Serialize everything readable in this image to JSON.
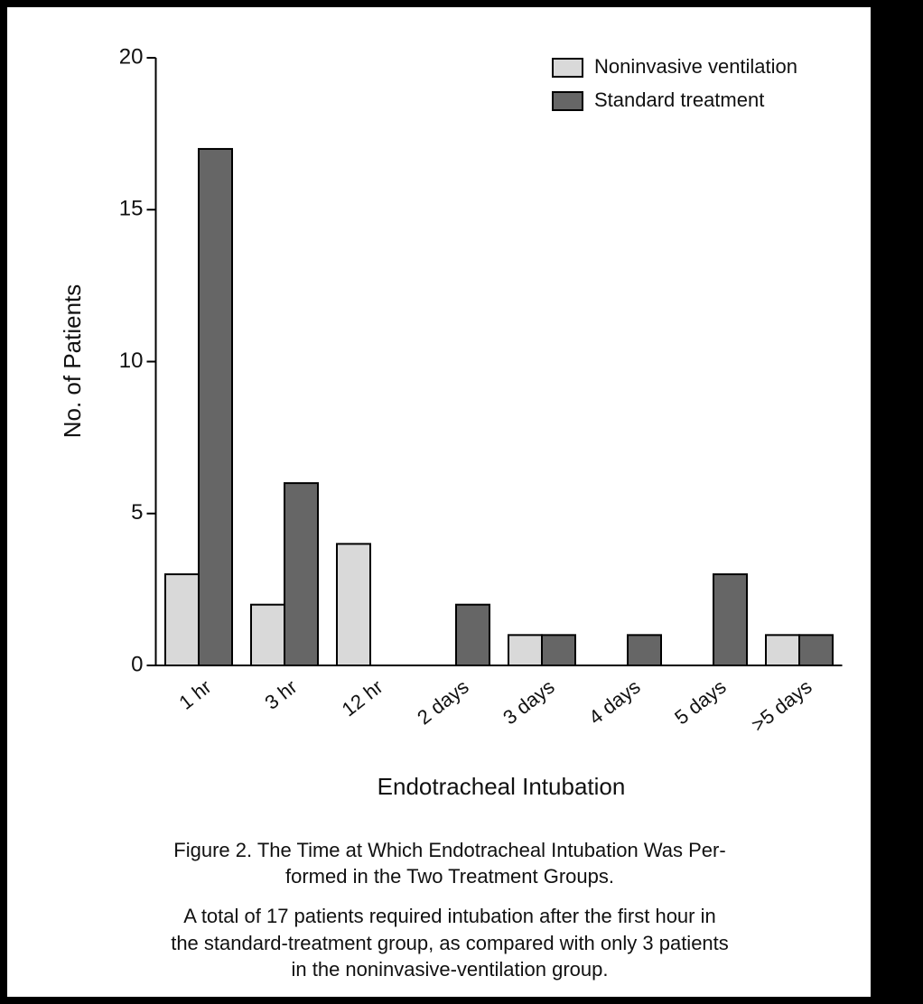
{
  "chart_data": {
    "type": "bar",
    "x_label": "Endotracheal Intubation",
    "y_label": "No. of Patients",
    "categories": [
      "1 hr",
      "3 hr",
      "12 hr",
      "2 days",
      "3 days",
      "4 days",
      "5 days",
      ">5 days"
    ],
    "series": [
      {
        "name": "Noninvasive ventilation",
        "color": "#d9d9d9",
        "values": [
          3,
          2,
          4,
          0,
          1,
          0,
          0,
          1
        ]
      },
      {
        "name": "Standard treatment",
        "color": "#666666",
        "values": [
          17,
          6,
          0,
          2,
          1,
          1,
          3,
          1
        ]
      }
    ],
    "ylim": [
      0,
      20
    ],
    "yticks": [
      0,
      5,
      10,
      15,
      20
    ],
    "legend": "upper right",
    "caption_title": [
      "Figure 2. The Time at Which Endotracheal Intubation Was Per-",
      "formed in the Two Treatment Groups."
    ],
    "caption_text": [
      "A total of 17 patients required intubation after the first hour in",
      "the standard-treatment group, as compared with only 3 patients",
      "in the noninvasive-ventilation group."
    ]
  }
}
